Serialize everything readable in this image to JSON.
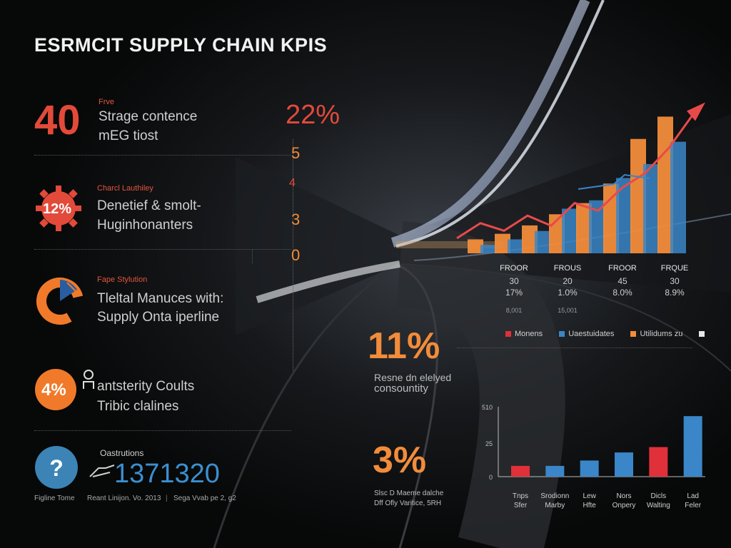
{
  "title": "ESRMCIT SUPPLY CHAIN KPIS",
  "kpis": [
    {
      "value": "40",
      "tag": "Frve",
      "line1": "Strage contence",
      "line2": "mEG tiost"
    },
    {
      "value": "12%",
      "tag": "Charcl Lauthiley",
      "line1": "Denetief & smolt-",
      "line2": "Huginhonanters"
    },
    {
      "value": "",
      "tag": "Fape Stylution",
      "line1": "Tleltal Manuces with:",
      "line2": "Supply Onta iperline"
    },
    {
      "value": "4%",
      "tag": "",
      "line1": "antsterity Coults",
      "line2": "Tribic clalines"
    }
  ],
  "bottom_kpi": {
    "label": "Oastrutions",
    "value": "1371320",
    "icon": "question-icon"
  },
  "footer": {
    "left": "Figline Tome",
    "middle": "Reant Linijon. Vo. 2013",
    "right": "Sega Vvab pe 2, g2"
  },
  "column22": {
    "value": "22%",
    "numbers": [
      "5",
      "4",
      "3",
      "0"
    ]
  },
  "mid_kpis": [
    {
      "value": "11%",
      "caption1": "Resne dn elelyed",
      "caption2": "consountity",
      "color": "#f28c3a"
    },
    {
      "value": "3%",
      "caption1": "Slsc D Maeme dalche",
      "caption2": "Dff Ofly Varitice, 5RH",
      "color": "#f28c3a"
    }
  ],
  "stat_table": {
    "headers": [
      "FROOR",
      "FROUS",
      "FROOR",
      "FRQUE"
    ],
    "row1": [
      "30",
      "20",
      "45",
      "30"
    ],
    "row2": [
      "17%",
      "1.0%",
      "8.0%",
      "8.9%"
    ],
    "small": [
      "8,001",
      "15,001"
    ]
  },
  "legend": [
    {
      "label": "Monens",
      "color": "#e0303a"
    },
    {
      "label": "Uaestuidates",
      "color": "#3a86c8"
    },
    {
      "label": "Utilidums zu",
      "color": "#f28c3a"
    }
  ],
  "chart_data": [
    {
      "type": "bar",
      "title": "",
      "series": [
        {
          "values": [
            0.5,
            0.7,
            1,
            1.4,
            1.8,
            2.5,
            4.1,
            4.9
          ],
          "color": "#f28c3a"
        },
        {
          "values": [
            0.3,
            0.5,
            0.8,
            1.6,
            1.9,
            2.7,
            3.2,
            4.0
          ],
          "color": "#3a86c8"
        }
      ],
      "trend_line": [
        0.6,
        1.2,
        0.9,
        1.5,
        1.1,
        2.0,
        1.7,
        2.6,
        3.2,
        4.2,
        5.5
      ],
      "arrow": "up"
    },
    {
      "type": "bar",
      "categories": [
        "Tnps Sfer",
        "Srodionn Marby",
        "Lew Hfte",
        "Nors Onpery",
        "Dicls Walting",
        "Lad Feler"
      ],
      "values": [
        8,
        8,
        12,
        18,
        22,
        45
      ],
      "colors": [
        "#e0303a",
        "#3a86c8",
        "#3a86c8",
        "#3a86c8",
        "#e0303a",
        "#3a86c8"
      ],
      "yticks": [
        "0",
        "25",
        "510"
      ],
      "ylim": [
        0,
        52
      ]
    }
  ]
}
